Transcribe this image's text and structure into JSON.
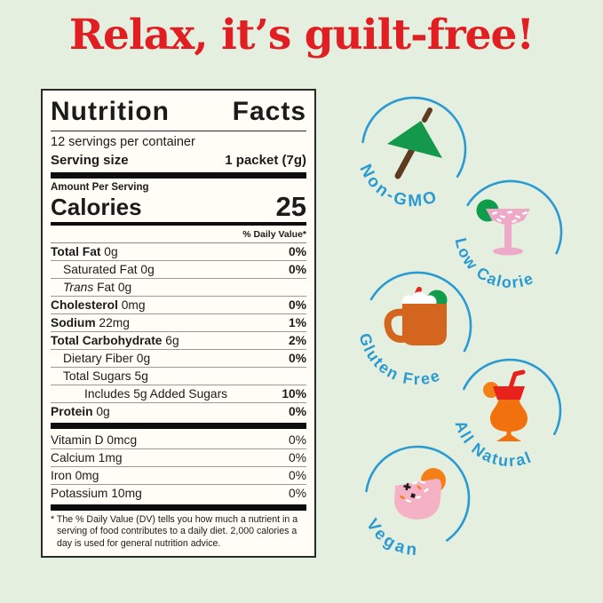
{
  "page": {
    "background_color": "#e5efdf"
  },
  "headline": {
    "text": "Relax, it’s guilt-free!",
    "color": "#e11e21"
  },
  "nutrition_label": {
    "title": "Nutrition Facts",
    "servings_per_container": "12 servings per container",
    "serving_size_label": "Serving size",
    "serving_size_value": "1 packet (7g)",
    "amount_per_serving": "Amount Per Serving",
    "calories_label": "Calories",
    "calories_value": "25",
    "daily_value_header": "% Daily Value*",
    "rows": [
      {
        "bold": "Total Fat",
        "text": " 0g",
        "dv": "0%",
        "dv_bold": true,
        "indent": 0
      },
      {
        "text": "Saturated Fat 0g",
        "dv": "0%",
        "dv_bold": true,
        "indent": 1
      },
      {
        "italic": "Trans",
        "text": " Fat 0g",
        "dv": "",
        "indent": 1
      },
      {
        "bold": "Cholesterol",
        "text": " 0mg",
        "dv": "0%",
        "dv_bold": true,
        "indent": 0
      },
      {
        "bold": "Sodium",
        "text": " 22mg",
        "dv": "1%",
        "dv_bold": true,
        "indent": 0
      },
      {
        "bold": "Total Carbohydrate",
        "text": " 6g",
        "dv": "2%",
        "dv_bold": true,
        "indent": 0
      },
      {
        "text": "Dietary Fiber 0g",
        "dv": "0%",
        "dv_bold": true,
        "indent": 1
      },
      {
        "text": "Total Sugars 5g",
        "dv": "",
        "indent": 1
      },
      {
        "text": "Includes 5g Added Sugars",
        "dv": "10%",
        "dv_bold": true,
        "indent": 2
      },
      {
        "bold": "Protein",
        "text": " 0g",
        "dv": "0%",
        "dv_bold": true,
        "indent": 0
      }
    ],
    "vitamin_rows": [
      {
        "text": "Vitamin D 0mcg",
        "dv": "0%"
      },
      {
        "text": "Calcium 1mg",
        "dv": "0%"
      },
      {
        "text": "Iron 0mg",
        "dv": "0%"
      },
      {
        "text": "Potassium 10mg",
        "dv": "0%"
      }
    ],
    "footnote": "* The % Daily Value (DV) tells you how much a nutrient in a serving of food contributes to a daily diet. 2,000 calories a day is used for general nutrition advice."
  },
  "badges": [
    {
      "label": "Non-GMO",
      "icon": "cocktail-umbrella-icon"
    },
    {
      "label": "Low Calorie",
      "icon": "margarita-glass-icon"
    },
    {
      "label": "Gluten Free",
      "icon": "mule-mug-icon"
    },
    {
      "label": "All Natural",
      "icon": "tropical-drink-icon"
    },
    {
      "label": "Vegan",
      "icon": "coconut-cocktail-icon"
    }
  ],
  "colors": {
    "badge_blue": "#2a9ad2",
    "headline_red": "#e11e21",
    "umbrella_green": "#14994c",
    "lime_green": "#0f9c4d",
    "margarita_pink": "#eda9c8",
    "vegan_pink": "#f5b2c5",
    "mug_orange": "#d4651e",
    "tropical_orange": "#f2710f",
    "fruit_orange": "#f57f17",
    "straw_red": "#e8211d",
    "stick_brown": "#5d3b1e"
  }
}
